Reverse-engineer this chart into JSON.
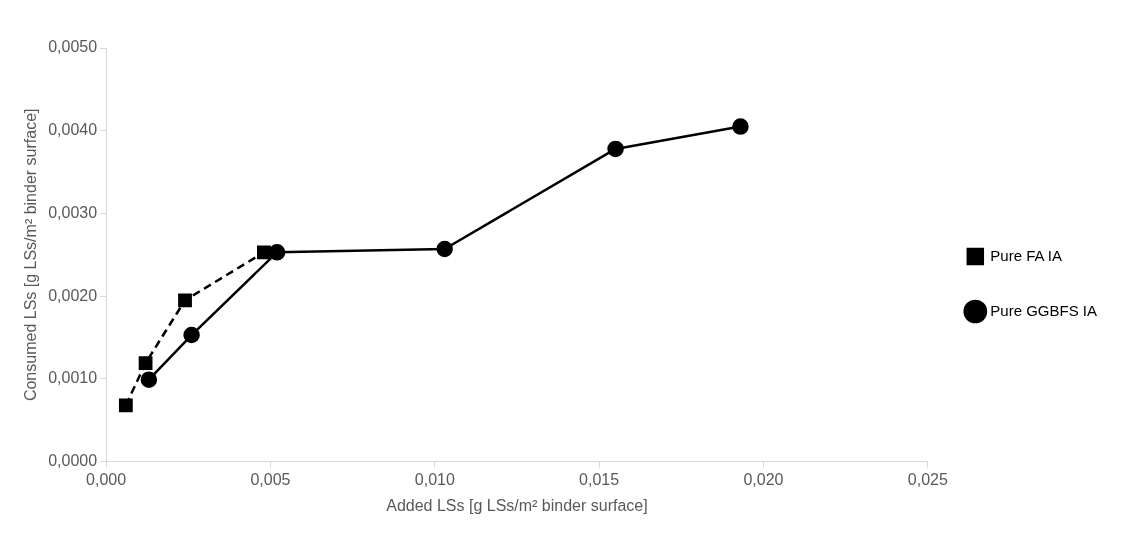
{
  "chart_data": {
    "type": "line",
    "xlabel": "Added LSs [g LSs/m² binder surface]",
    "ylabel": "Consumed LSs [g LSs/m² binder surface]",
    "xlim": [
      0,
      0.025
    ],
    "xticks": [
      {
        "value": 0,
        "label": "0,000"
      },
      {
        "value": 0.005,
        "label": "0,005"
      },
      {
        "value": 0.01,
        "label": "0,010"
      },
      {
        "value": 0.015,
        "label": "0,015"
      },
      {
        "value": 0.02,
        "label": "0,020"
      },
      {
        "value": 0.025,
        "label": "0,025"
      }
    ],
    "ylim": [
      0,
      0.005
    ],
    "yticks": [
      {
        "value": 0,
        "label": "0,0000"
      },
      {
        "value": 0.001,
        "label": "0,0010"
      },
      {
        "value": 0.002,
        "label": "0,0020"
      },
      {
        "value": 0.003,
        "label": "0,0030"
      },
      {
        "value": 0.004,
        "label": "0,0040"
      },
      {
        "value": 0.005,
        "label": "0,0050"
      }
    ],
    "grid": false,
    "legend": "right",
    "series": [
      {
        "name": "Pure FA IA",
        "color": "#000000",
        "marker": "square",
        "line_style": "dashed",
        "x": [
          0.0006,
          0.0012,
          0.0024,
          0.0048
        ],
        "values": [
          0.00068,
          0.00119,
          0.00195,
          0.00253
        ]
      },
      {
        "name": "Pure GGBFS IA",
        "color": "#000000",
        "marker": "circle",
        "line_style": "solid",
        "x": [
          0.0013,
          0.0026,
          0.0052,
          0.0103,
          0.0155,
          0.0193
        ],
        "values": [
          0.00099,
          0.00153,
          0.00253,
          0.00257,
          0.00378,
          0.00405
        ]
      }
    ]
  }
}
